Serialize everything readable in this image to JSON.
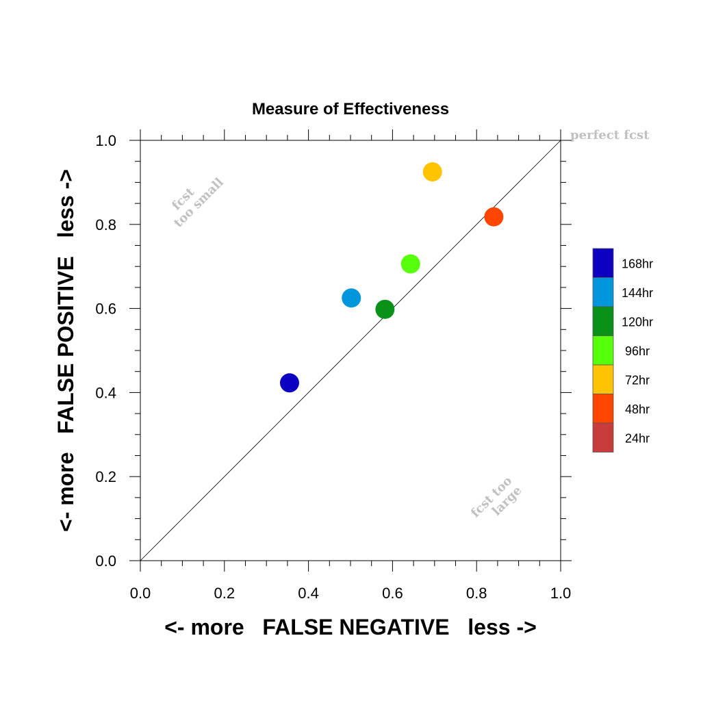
{
  "chart_data": {
    "type": "scatter",
    "title": "Measure of Effectiveness",
    "xlabel": "<- more   FALSE NEGATIVE   less ->",
    "ylabel": "<- more   FALSE POSITIVE   less ->",
    "xlim": [
      0.0,
      1.0
    ],
    "ylim": [
      0.0,
      1.0
    ],
    "xticks": [
      "0.0",
      "0.2",
      "0.4",
      "0.6",
      "0.8",
      "1.0"
    ],
    "yticks": [
      "0.0",
      "0.2",
      "0.4",
      "0.6",
      "0.8",
      "1.0"
    ],
    "grid": false,
    "diagonal_reference": true,
    "legend_placement": "right",
    "annotations": {
      "perfect": "perfect fcst",
      "too_small_1": "fcst",
      "too_small_2": "too small",
      "too_large_1": "fcst too",
      "too_large_2": "large"
    },
    "points": [
      {
        "name": "168hr",
        "x": 0.355,
        "y": 0.423,
        "color": "#0d00c0"
      },
      {
        "name": "144hr",
        "x": 0.502,
        "y": 0.625,
        "color": "#0096dc"
      },
      {
        "name": "120hr",
        "x": 0.582,
        "y": 0.598,
        "color": "#0a9117"
      },
      {
        "name": "96hr",
        "x": 0.643,
        "y": 0.706,
        "color": "#58ff0a"
      },
      {
        "name": "72hr",
        "x": 0.695,
        "y": 0.925,
        "color": "#ffc300"
      },
      {
        "name": "48hr",
        "x": 0.841,
        "y": 0.818,
        "color": "#ff4600"
      }
    ],
    "legend": [
      {
        "label": "168hr",
        "color": "#0d00c0"
      },
      {
        "label": "144hr",
        "color": "#0096dc"
      },
      {
        "label": "120hr",
        "color": "#0a9117"
      },
      {
        "label": "96hr",
        "color": "#58ff0a"
      },
      {
        "label": "72hr",
        "color": "#ffc300"
      },
      {
        "label": "48hr",
        "color": "#ff4600"
      },
      {
        "label": "24hr",
        "color": "#c83c3c"
      }
    ]
  }
}
